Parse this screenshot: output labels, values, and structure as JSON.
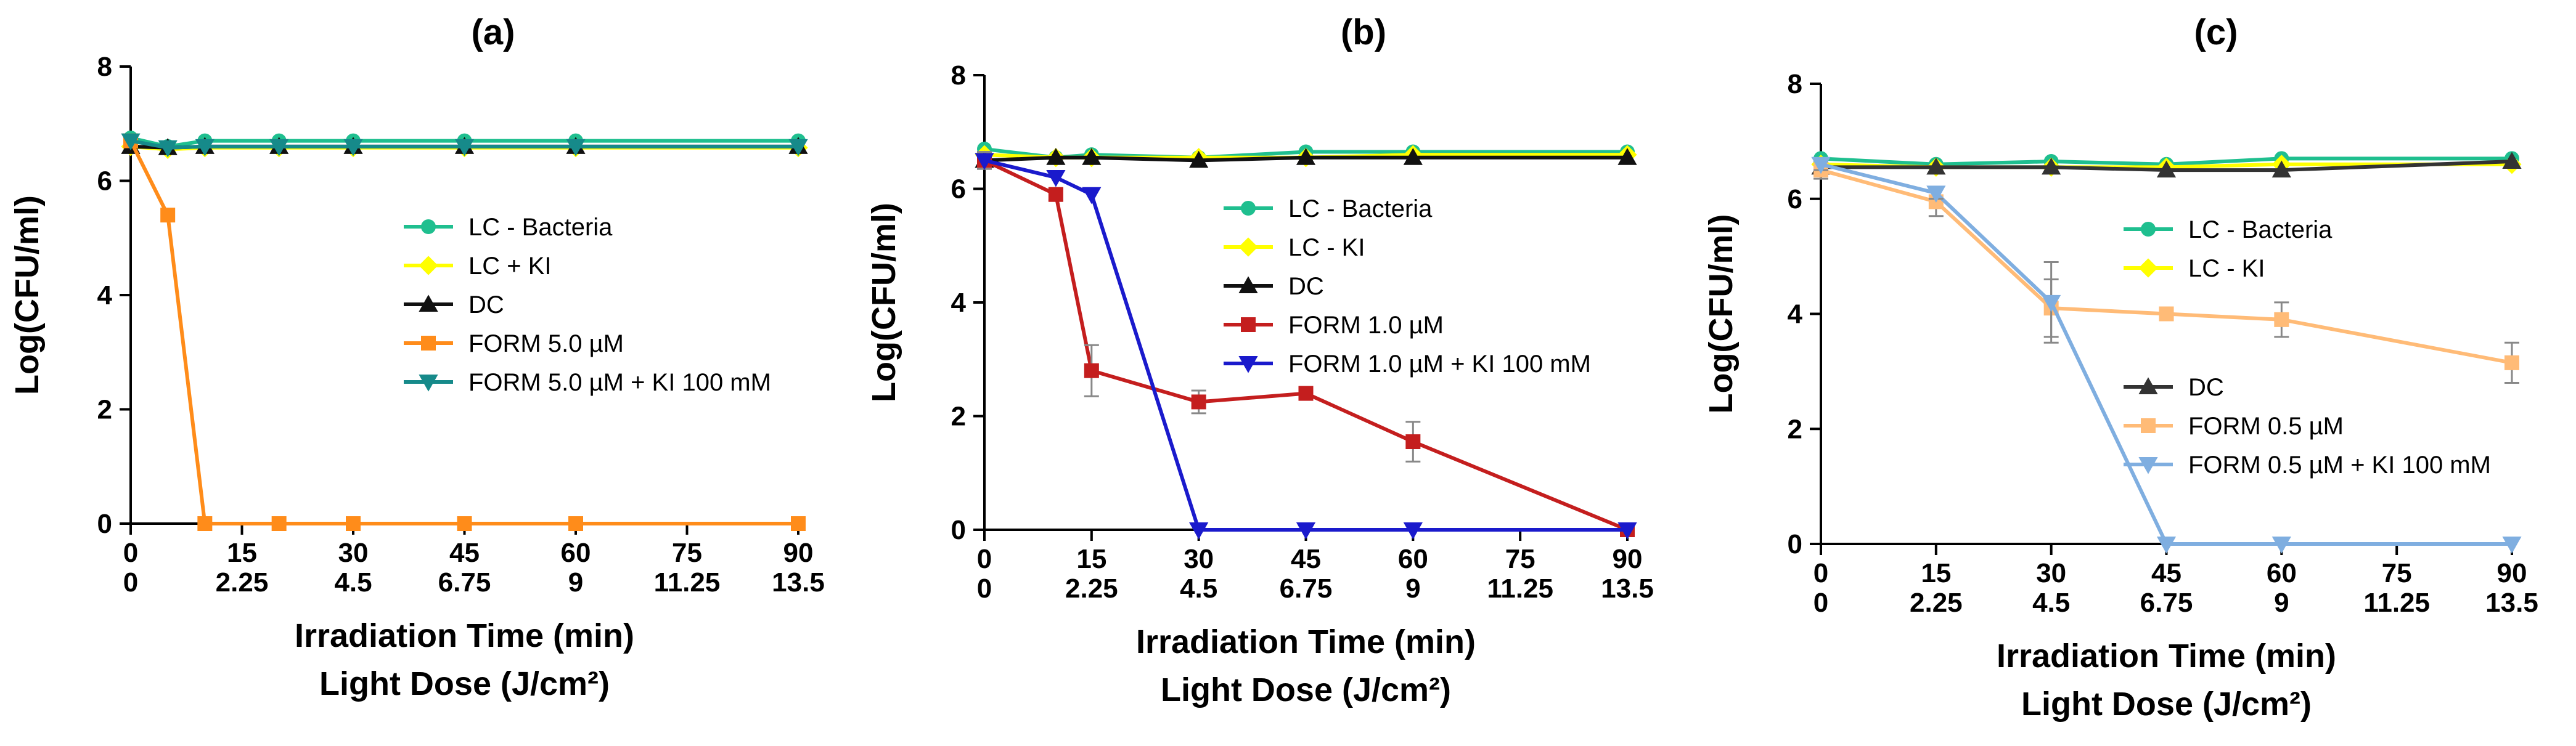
{
  "chart_data": [
    {
      "type": "line",
      "title": "(a)",
      "ylabel": "Log(CFU/ml)",
      "xlabel_lines": [
        "Irradiation Time (min)",
        "Light Dose (J/cm²)"
      ],
      "xlim": [
        0,
        90
      ],
      "ylim": [
        0,
        8
      ],
      "yticks": [
        0,
        2,
        4,
        6,
        8
      ],
      "xticks": [
        0,
        15,
        30,
        45,
        60,
        75,
        90
      ],
      "xticks_secondary": [
        "0",
        "2.25",
        "4.5",
        "6.75",
        "9",
        "11.25",
        "13.5"
      ],
      "legend_position": "center-right",
      "series": [
        {
          "name": "LC - Bacteria",
          "color": "#1fbf8f",
          "marker": "circle",
          "x": [
            0,
            5,
            10,
            20,
            30,
            45,
            60,
            90
          ],
          "y": [
            6.75,
            6.6,
            6.7,
            6.7,
            6.7,
            6.7,
            6.7,
            6.7
          ]
        },
        {
          "name": "LC + KI",
          "color": "#ffff00",
          "marker": "diamond",
          "x": [
            0,
            5,
            10,
            20,
            30,
            45,
            60,
            90
          ],
          "y": [
            6.6,
            6.55,
            6.58,
            6.58,
            6.58,
            6.58,
            6.58,
            6.58
          ]
        },
        {
          "name": "DC",
          "color": "#111111",
          "marker": "triangle-up",
          "x": [
            0,
            5,
            10,
            20,
            30,
            45,
            60,
            90
          ],
          "y": [
            6.6,
            6.58,
            6.6,
            6.6,
            6.6,
            6.6,
            6.6,
            6.6
          ]
        },
        {
          "name": "FORM 5.0 µM",
          "color": "#ff8c1a",
          "marker": "square",
          "x": [
            0,
            5,
            10,
            20,
            30,
            45,
            60,
            90
          ],
          "y": [
            6.7,
            5.4,
            0,
            0,
            0,
            0,
            0,
            0
          ]
        },
        {
          "name": "FORM 5.0 µM + KI 100 mM",
          "color": "#168a8a",
          "marker": "triangle-down",
          "x": [
            0,
            5,
            10,
            20,
            30,
            45,
            60,
            90
          ],
          "y": [
            6.7,
            6.58,
            6.6,
            6.6,
            6.6,
            6.6,
            6.6,
            6.6
          ]
        }
      ]
    },
    {
      "type": "line",
      "title": "(b)",
      "ylabel": "Log(CFU/ml)",
      "xlabel_lines": [
        "Irradiation Time (min)",
        "Light Dose (J/cm²)"
      ],
      "xlim": [
        0,
        90
      ],
      "ylim": [
        0,
        8
      ],
      "yticks": [
        0,
        2,
        4,
        6,
        8
      ],
      "xticks": [
        0,
        15,
        30,
        45,
        60,
        75,
        90
      ],
      "xticks_secondary": [
        "0",
        "2.25",
        "4.5",
        "6.75",
        "9",
        "11.25",
        "13.5"
      ],
      "legend_position": "center-right",
      "series": [
        {
          "name": "LC - Bacteria",
          "color": "#1fbf8f",
          "marker": "circle",
          "x": [
            0,
            10,
            15,
            30,
            45,
            60,
            90
          ],
          "y": [
            6.7,
            6.55,
            6.6,
            6.55,
            6.65,
            6.65,
            6.65
          ]
        },
        {
          "name": "LC - KI",
          "color": "#ffff00",
          "marker": "diamond",
          "x": [
            0,
            10,
            15,
            30,
            45,
            60,
            90
          ],
          "y": [
            6.6,
            6.55,
            6.55,
            6.55,
            6.55,
            6.6,
            6.6
          ]
        },
        {
          "name": "DC",
          "color": "#111111",
          "marker": "triangle-up",
          "x": [
            0,
            10,
            15,
            30,
            45,
            60,
            90
          ],
          "y": [
            6.5,
            6.55,
            6.55,
            6.5,
            6.55,
            6.55,
            6.55
          ]
        },
        {
          "name": "FORM 1.0 µM",
          "color": "#c41e1e",
          "marker": "square",
          "x": [
            0,
            10,
            15,
            30,
            45,
            60,
            90
          ],
          "y": [
            6.5,
            5.9,
            2.8,
            2.25,
            2.4,
            1.55,
            0
          ],
          "err": [
            0.15,
            0.1,
            0.45,
            0.2,
            0.1,
            0.35,
            0
          ]
        },
        {
          "name": "FORM 1.0 µM + KI 100 mM",
          "color": "#1a1acc",
          "marker": "triangle-down",
          "x": [
            0,
            10,
            15,
            30,
            45,
            60,
            90
          ],
          "y": [
            6.5,
            6.2,
            5.9,
            0,
            0,
            0,
            0
          ]
        }
      ]
    },
    {
      "type": "line",
      "title": "(c)",
      "ylabel": "Log(CFU/ml)",
      "xlabel_lines": [
        "Irradiation Time (min)",
        "Light Dose (J/cm²)"
      ],
      "xlim": [
        0,
        90
      ],
      "ylim": [
        0,
        8
      ],
      "yticks": [
        0,
        2,
        4,
        6,
        8
      ],
      "xticks": [
        0,
        15,
        30,
        45,
        60,
        75,
        90
      ],
      "xticks_secondary": [
        "0",
        "2.25",
        "4.5",
        "6.75",
        "9",
        "11.25",
        "13.5"
      ],
      "legend_position": "center-right",
      "series": [
        {
          "name": "LC - Bacteria",
          "color": "#1fbf8f",
          "marker": "circle",
          "x": [
            0,
            15,
            30,
            45,
            60,
            90
          ],
          "y": [
            6.7,
            6.6,
            6.65,
            6.6,
            6.7,
            6.7
          ]
        },
        {
          "name": "LC - KI",
          "color": "#ffff00",
          "marker": "diamond",
          "x": [
            0,
            15,
            30,
            45,
            60,
            90
          ],
          "y": [
            6.6,
            6.55,
            6.55,
            6.55,
            6.6,
            6.6
          ]
        },
        {
          "name": "DC",
          "color": "#333333",
          "marker": "triangle-up",
          "x": [
            0,
            15,
            30,
            45,
            60,
            90
          ],
          "y": [
            6.55,
            6.55,
            6.55,
            6.5,
            6.5,
            6.65
          ]
        },
        {
          "name": "FORM 0.5 µM",
          "color": "#ffbb77",
          "marker": "square",
          "x": [
            0,
            15,
            30,
            45,
            60,
            90
          ],
          "y": [
            6.5,
            5.95,
            4.1,
            4.0,
            3.9,
            3.15
          ],
          "err": [
            0.15,
            0.25,
            0.5,
            0.1,
            0.3,
            0.35
          ]
        },
        {
          "name": "FORM 0.5 µM + KI 100 mM",
          "color": "#7faee0",
          "marker": "triangle-down",
          "x": [
            0,
            15,
            30,
            45,
            60,
            90
          ],
          "y": [
            6.6,
            6.1,
            4.2,
            0,
            0,
            0
          ],
          "err": [
            0.1,
            0.1,
            0.7,
            0,
            0,
            0
          ]
        }
      ]
    }
  ]
}
